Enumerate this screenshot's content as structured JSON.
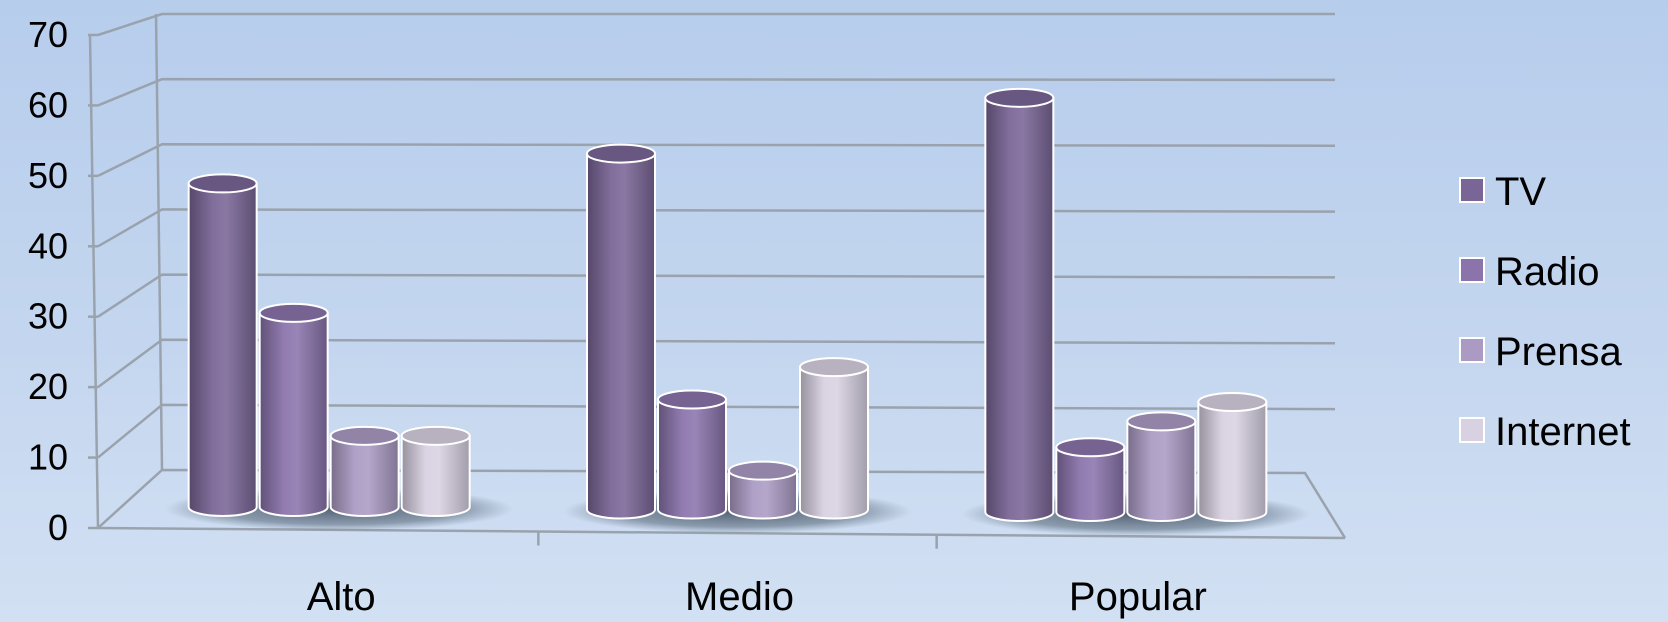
{
  "chart_data": {
    "type": "bar",
    "title": "",
    "xlabel": "",
    "ylabel": "",
    "categories": [
      "Alto",
      "Medio",
      "Popular"
    ],
    "series": [
      {
        "name": "TV",
        "values": [
          50,
          55,
          64
        ],
        "color": "#7a6696"
      },
      {
        "name": "Radio",
        "values": [
          30,
          17,
          10
        ],
        "color": "#8b74ac"
      },
      {
        "name": "Prensa",
        "values": [
          11,
          6,
          14
        ],
        "color": "#ab9bc4"
      },
      {
        "name": "Internet",
        "values": [
          11,
          22,
          17
        ],
        "color": "#d8d1e2"
      }
    ],
    "ylim": [
      0,
      70
    ],
    "yticks": [
      0,
      10,
      20,
      30,
      40,
      50,
      60,
      70
    ],
    "grid": true,
    "legend_position": "right",
    "style": "3d-cylinder"
  }
}
